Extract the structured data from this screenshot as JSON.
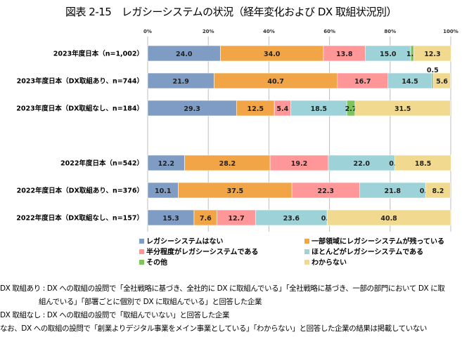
{
  "title": "図表 2-15　レガシーシステムの状況（経年変化および DX 取組状況別）",
  "chart_data": {
    "type": "bar",
    "orientation": "horizontal",
    "stacked": "100%",
    "title": "図表 2-15　レガシーシステムの状況（経年変化および DX 取組状況別）",
    "xlim": [
      0,
      100
    ],
    "x_ticks": [
      "0%",
      "20%",
      "40%",
      "60%",
      "80%",
      "100%"
    ],
    "grid": true,
    "legend_position": "bottom",
    "categories": [
      "2023年度日本（n=1,002）",
      "2023年度日本（DX取組あり、n=744）",
      "2023年度日本（DX取組なし、n=184）",
      "2022年度日本（n=542）",
      "2022年度日本（DX取組あり、n=376）",
      "2022年度日本（DX取組なし、n=157）"
    ],
    "series": [
      {
        "name": "レガシーシステムはない",
        "color": "#7f9cc4",
        "values": [
          24.0,
          21.9,
          29.3,
          12.2,
          10.1,
          15.3
        ]
      },
      {
        "name": "一部領域にレガシーシステムが残っている",
        "color": "#f2a546",
        "values": [
          34.0,
          40.7,
          12.5,
          28.2,
          37.5,
          7.6
        ]
      },
      {
        "name": "半分程度がレガシーシステムである",
        "color": "#ff9799",
        "values": [
          13.8,
          16.7,
          5.4,
          19.2,
          22.3,
          12.7
        ]
      },
      {
        "name": "ほとんどがレガシーシステムである",
        "color": "#9dd3d8",
        "values": [
          15.0,
          14.5,
          18.5,
          22.0,
          21.8,
          23.6
        ]
      },
      {
        "name": "その他",
        "color": "#7dc45c",
        "values": [
          1.0,
          0.5,
          2.7,
          0.0,
          0.0,
          0.0
        ]
      },
      {
        "name": "わからない",
        "color": "#f1da90",
        "values": [
          12.3,
          5.6,
          31.5,
          18.5,
          8.2,
          40.8
        ]
      }
    ]
  },
  "notes": [
    "DX 取組あり : DX への取組の設問で「全社戦略に基づき、全社的に DX に取組んでいる」「全社戦略に基づき、一部の部門において DX に取",
    "組んでいる」「部署ごとに個別で DX に取組んでいる」と回答した企業",
    "DX 取組なし : DX への取組の設問で「取組んでいない」と回答した企業",
    "なお、DX への取組の設問で「創業よりデジタル事業をメイン事業としている」「わからない」と回答した企業の結果は掲載していない"
  ]
}
